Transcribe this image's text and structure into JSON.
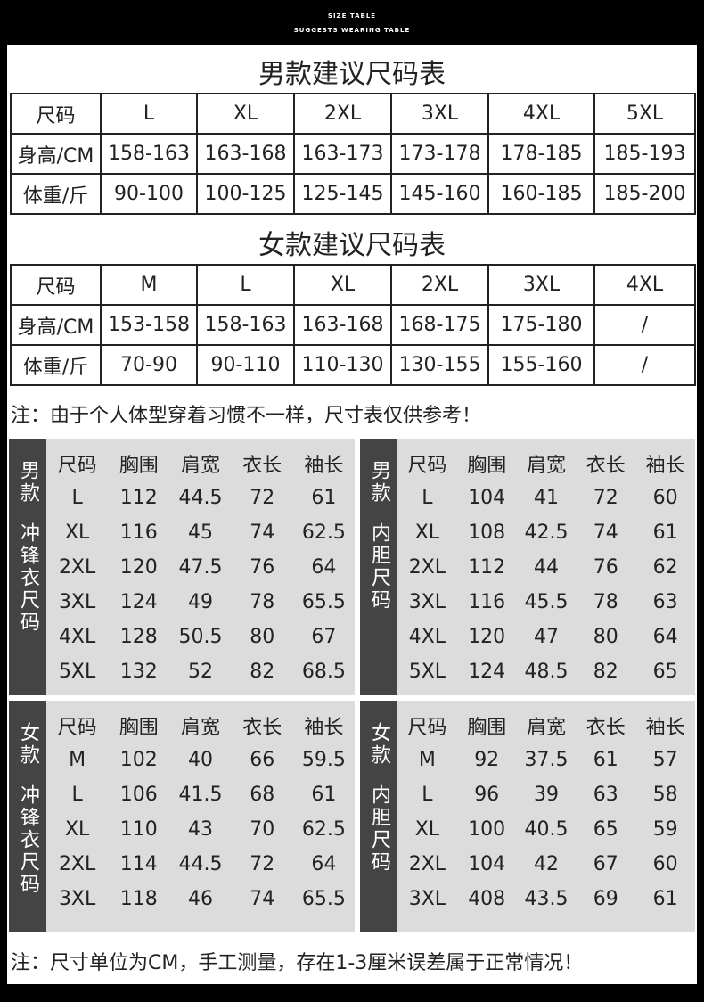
{
  "header": {
    "line1": "SIZE TABLE",
    "line2": "SUGGESTS WEARING TABLE"
  },
  "men": {
    "title": "男款建议尺码表",
    "rows": [
      [
        "尺码",
        "L",
        "XL",
        "2XL",
        "3XL",
        "4XL",
        "5XL"
      ],
      [
        "身高/CM",
        "158-163",
        "163-168",
        "163-173",
        "173-178",
        "178-185",
        "185-193"
      ],
      [
        "体重/斤",
        "90-100",
        "100-125",
        "125-145",
        "145-160",
        "160-185",
        "185-200"
      ]
    ]
  },
  "women": {
    "title": "女款建议尺码表",
    "rows": [
      [
        "尺码",
        "M",
        "L",
        "XL",
        "2XL",
        "3XL",
        "4XL"
      ],
      [
        "身高/CM",
        "153-158",
        "158-163",
        "163-168",
        "168-175",
        "175-180",
        "/"
      ],
      [
        "体重/斤",
        "70-90",
        "90-110",
        "110-130",
        "130-155",
        "155-160",
        "/"
      ]
    ]
  },
  "note1": "注：由于个人体型穿着习惯不一样，尺寸表仅供参考！",
  "panels": [
    {
      "label": [
        "男款",
        "冲锋衣尺码"
      ],
      "header": [
        "尺码",
        "胸围",
        "肩宽",
        "衣长",
        "袖长"
      ],
      "rows": [
        [
          "L",
          "112",
          "44.5",
          "72",
          "61"
        ],
        [
          "XL",
          "116",
          "45",
          "74",
          "62.5"
        ],
        [
          "2XL",
          "120",
          "47.5",
          "76",
          "64"
        ],
        [
          "3XL",
          "124",
          "49",
          "78",
          "65.5"
        ],
        [
          "4XL",
          "128",
          "50.5",
          "80",
          "67"
        ],
        [
          "5XL",
          "132",
          "52",
          "82",
          "68.5"
        ]
      ]
    },
    {
      "label": [
        "男款",
        "内胆尺码"
      ],
      "header": [
        "尺码",
        "胸围",
        "肩宽",
        "衣长",
        "袖长"
      ],
      "rows": [
        [
          "L",
          "104",
          "41",
          "72",
          "60"
        ],
        [
          "XL",
          "108",
          "42.5",
          "74",
          "61"
        ],
        [
          "2XL",
          "112",
          "44",
          "76",
          "62"
        ],
        [
          "3XL",
          "116",
          "45.5",
          "78",
          "63"
        ],
        [
          "4XL",
          "120",
          "47",
          "80",
          "64"
        ],
        [
          "5XL",
          "124",
          "48.5",
          "82",
          "65"
        ]
      ]
    },
    {
      "label": [
        "女款",
        "冲锋衣尺码"
      ],
      "header": [
        "尺码",
        "胸围",
        "肩宽",
        "衣长",
        "袖长"
      ],
      "rows": [
        [
          "M",
          "102",
          "40",
          "66",
          "59.5"
        ],
        [
          "L",
          "106",
          "41.5",
          "68",
          "61"
        ],
        [
          "XL",
          "110",
          "43",
          "70",
          "62.5"
        ],
        [
          "2XL",
          "114",
          "44.5",
          "72",
          "64"
        ],
        [
          "3XL",
          "118",
          "46",
          "74",
          "65.5"
        ]
      ]
    },
    {
      "label": [
        "女款",
        "内胆尺码"
      ],
      "header": [
        "尺码",
        "胸围",
        "肩宽",
        "衣长",
        "袖长"
      ],
      "rows": [
        [
          "M",
          "92",
          "37.5",
          "61",
          "57"
        ],
        [
          "L",
          "96",
          "39",
          "63",
          "58"
        ],
        [
          "XL",
          "100",
          "40.5",
          "65",
          "59"
        ],
        [
          "2XL",
          "104",
          "42",
          "67",
          "60"
        ],
        [
          "3XL",
          "408",
          "43.5",
          "69",
          "61"
        ]
      ]
    }
  ],
  "note2": "注：尺寸单位为CM，手工测量，存在1-3厘米误差属于正常情况！"
}
